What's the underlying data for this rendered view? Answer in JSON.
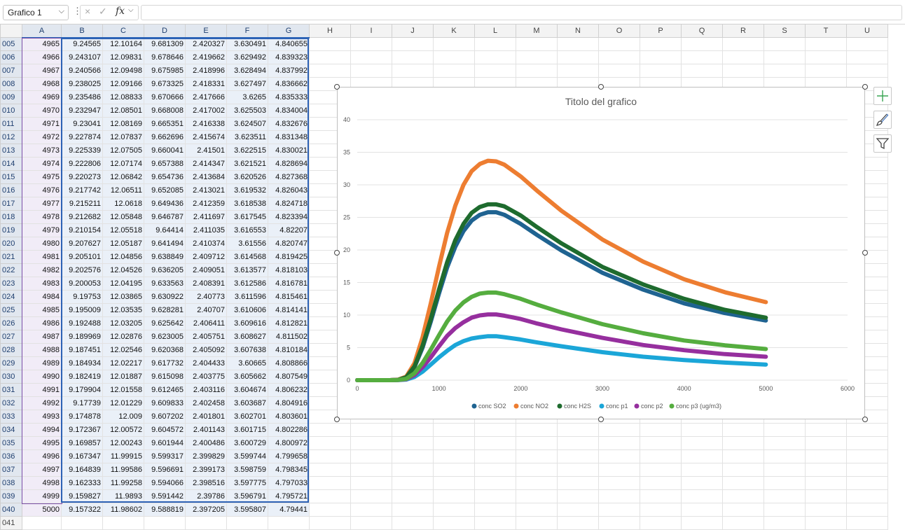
{
  "formula_bar": {
    "name_box": "Grafico 1",
    "cancel_icon": "×",
    "enter_icon": "✓",
    "fx_label": "fx",
    "formula": ""
  },
  "columns": [
    "A",
    "B",
    "C",
    "D",
    "E",
    "F",
    "G",
    "H",
    "I",
    "J",
    "K",
    "L",
    "M",
    "N",
    "O",
    "P",
    "Q",
    "R",
    "S",
    "T",
    "U"
  ],
  "rows": [
    {
      "n": "005",
      "v": [
        "4965",
        "9.24565",
        "12.10164",
        "9.681309",
        "2.420327",
        "3.630491",
        "4.840655"
      ]
    },
    {
      "n": "006",
      "v": [
        "4966",
        "9.243107",
        "12.09831",
        "9.678646",
        "2.419662",
        "3.629492",
        "4.839323"
      ]
    },
    {
      "n": "007",
      "v": [
        "4967",
        "9.240566",
        "12.09498",
        "9.675985",
        "2.418996",
        "3.628494",
        "4.837992"
      ]
    },
    {
      "n": "008",
      "v": [
        "4968",
        "9.238025",
        "12.09166",
        "9.673325",
        "2.418331",
        "3.627497",
        "4.836662"
      ]
    },
    {
      "n": "009",
      "v": [
        "4969",
        "9.235486",
        "12.08833",
        "9.670666",
        "2.417666",
        "3.6265",
        "4.835333"
      ]
    },
    {
      "n": "010",
      "v": [
        "4970",
        "9.232947",
        "12.08501",
        "9.668008",
        "2.417002",
        "3.625503",
        "4.834004"
      ]
    },
    {
      "n": "011",
      "v": [
        "4971",
        "9.23041",
        "12.08169",
        "9.665351",
        "2.416338",
        "3.624507",
        "4.832676"
      ]
    },
    {
      "n": "012",
      "v": [
        "4972",
        "9.227874",
        "12.07837",
        "9.662696",
        "2.415674",
        "3.623511",
        "4.831348"
      ]
    },
    {
      "n": "013",
      "v": [
        "4973",
        "9.225339",
        "12.07505",
        "9.660041",
        "2.41501",
        "3.622515",
        "4.830021"
      ]
    },
    {
      "n": "014",
      "v": [
        "4974",
        "9.222806",
        "12.07174",
        "9.657388",
        "2.414347",
        "3.621521",
        "4.828694"
      ]
    },
    {
      "n": "015",
      "v": [
        "4975",
        "9.220273",
        "12.06842",
        "9.654736",
        "2.413684",
        "3.620526",
        "4.827368"
      ]
    },
    {
      "n": "016",
      "v": [
        "4976",
        "9.217742",
        "12.06511",
        "9.652085",
        "2.413021",
        "3.619532",
        "4.826043"
      ]
    },
    {
      "n": "017",
      "v": [
        "4977",
        "9.215211",
        "12.0618",
        "9.649436",
        "2.412359",
        "3.618538",
        "4.824718"
      ]
    },
    {
      "n": "018",
      "v": [
        "4978",
        "9.212682",
        "12.05848",
        "9.646787",
        "2.411697",
        "3.617545",
        "4.823394"
      ]
    },
    {
      "n": "019",
      "v": [
        "4979",
        "9.210154",
        "12.05518",
        "9.64414",
        "2.411035",
        "3.616553",
        "4.82207"
      ]
    },
    {
      "n": "020",
      "v": [
        "4980",
        "9.207627",
        "12.05187",
        "9.641494",
        "2.410374",
        "3.61556",
        "4.820747"
      ]
    },
    {
      "n": "021",
      "v": [
        "4981",
        "9.205101",
        "12.04856",
        "9.638849",
        "2.409712",
        "3.614568",
        "4.819425"
      ]
    },
    {
      "n": "022",
      "v": [
        "4982",
        "9.202576",
        "12.04526",
        "9.636205",
        "2.409051",
        "3.613577",
        "4.818103"
      ]
    },
    {
      "n": "023",
      "v": [
        "4983",
        "9.200053",
        "12.04195",
        "9.633563",
        "2.408391",
        "3.612586",
        "4.816781"
      ]
    },
    {
      "n": "024",
      "v": [
        "4984",
        "9.19753",
        "12.03865",
        "9.630922",
        "2.40773",
        "3.611596",
        "4.815461"
      ]
    },
    {
      "n": "025",
      "v": [
        "4985",
        "9.195009",
        "12.03535",
        "9.628281",
        "2.40707",
        "3.610606",
        "4.814141"
      ]
    },
    {
      "n": "026",
      "v": [
        "4986",
        "9.192488",
        "12.03205",
        "9.625642",
        "2.406411",
        "3.609616",
        "4.812821"
      ]
    },
    {
      "n": "027",
      "v": [
        "4987",
        "9.189969",
        "12.02876",
        "9.623005",
        "2.405751",
        "3.608627",
        "4.811502"
      ]
    },
    {
      "n": "028",
      "v": [
        "4988",
        "9.187451",
        "12.02546",
        "9.620368",
        "2.405092",
        "3.607638",
        "4.810184"
      ]
    },
    {
      "n": "029",
      "v": [
        "4989",
        "9.184934",
        "12.02217",
        "9.617732",
        "2.404433",
        "3.60665",
        "4.808866"
      ]
    },
    {
      "n": "030",
      "v": [
        "4990",
        "9.182419",
        "12.01887",
        "9.615098",
        "2.403775",
        "3.605662",
        "4.807549"
      ]
    },
    {
      "n": "031",
      "v": [
        "4991",
        "9.179904",
        "12.01558",
        "9.612465",
        "2.403116",
        "3.604674",
        "4.806232"
      ]
    },
    {
      "n": "032",
      "v": [
        "4992",
        "9.17739",
        "12.01229",
        "9.609833",
        "2.402458",
        "3.603687",
        "4.804916"
      ]
    },
    {
      "n": "033",
      "v": [
        "4993",
        "9.174878",
        "12.009",
        "9.607202",
        "2.401801",
        "3.602701",
        "4.803601"
      ]
    },
    {
      "n": "034",
      "v": [
        "4994",
        "9.172367",
        "12.00572",
        "9.604572",
        "2.401143",
        "3.601715",
        "4.802286"
      ]
    },
    {
      "n": "035",
      "v": [
        "4995",
        "9.169857",
        "12.00243",
        "9.601944",
        "2.400486",
        "3.600729",
        "4.800972"
      ]
    },
    {
      "n": "036",
      "v": [
        "4996",
        "9.167347",
        "11.99915",
        "9.599317",
        "2.399829",
        "3.599744",
        "4.799658"
      ]
    },
    {
      "n": "037",
      "v": [
        "4997",
        "9.164839",
        "11.99586",
        "9.596691",
        "2.399173",
        "3.598759",
        "4.798345"
      ]
    },
    {
      "n": "038",
      "v": [
        "4998",
        "9.162333",
        "11.99258",
        "9.594066",
        "2.398516",
        "3.597775",
        "4.797033"
      ]
    },
    {
      "n": "039",
      "v": [
        "4999",
        "9.159827",
        "11.9893",
        "9.591442",
        "2.39786",
        "3.596791",
        "4.795721"
      ]
    },
    {
      "n": "040",
      "v": [
        "5000",
        "9.157322",
        "11.98602",
        "9.588819",
        "2.397205",
        "3.595807",
        "4.79441"
      ]
    },
    {
      "n": "041",
      "v": [
        "",
        "",
        "",
        "",
        "",
        "",
        ""
      ]
    }
  ],
  "chart_data": {
    "type": "scatter",
    "title": "Titolo del grafico",
    "xlim": [
      0,
      6000
    ],
    "ylim": [
      0,
      40
    ],
    "x_ticks": [
      0,
      1000,
      2000,
      3000,
      4000,
      5000,
      6000
    ],
    "y_ticks": [
      0,
      5,
      10,
      15,
      20,
      25,
      30,
      35,
      40
    ],
    "grid": "horizontal",
    "legend_position": "bottom",
    "x": [
      0,
      400,
      500,
      600,
      700,
      800,
      900,
      1000,
      1100,
      1200,
      1300,
      1400,
      1500,
      1600,
      1700,
      1800,
      2000,
      2200,
      2500,
      3000,
      3500,
      4000,
      4500,
      5000
    ],
    "series": [
      {
        "name": "conc SO2",
        "color": "#1f6391",
        "values": [
          0,
          0,
          0.05,
          0.4,
          2.0,
          5.0,
          9.0,
          13.3,
          17.3,
          20.5,
          22.9,
          24.5,
          25.4,
          25.8,
          25.8,
          25.4,
          24.0,
          22.3,
          19.9,
          16.5,
          13.9,
          11.8,
          10.3,
          9.16
        ]
      },
      {
        "name": "conc NO2",
        "color": "#ed7d31",
        "values": [
          0,
          0,
          0.07,
          0.55,
          2.6,
          6.6,
          11.8,
          17.4,
          22.6,
          26.8,
          30.0,
          32.1,
          33.2,
          33.7,
          33.6,
          33.1,
          31.3,
          29.1,
          26.0,
          21.6,
          18.2,
          15.5,
          13.5,
          11.99
        ]
      },
      {
        "name": "conc H2S",
        "color": "#1e6b2e",
        "values": [
          0,
          0,
          0.05,
          0.45,
          2.1,
          5.3,
          9.4,
          13.9,
          18.1,
          21.5,
          24.0,
          25.7,
          26.6,
          27.0,
          27.0,
          26.7,
          25.3,
          23.5,
          21.0,
          17.4,
          14.7,
          12.5,
          10.8,
          9.59
        ]
      },
      {
        "name": "conc p1",
        "color": "#1ba6d8",
        "values": [
          0,
          0,
          0.01,
          0.1,
          0.5,
          1.3,
          2.4,
          3.5,
          4.5,
          5.4,
          6.0,
          6.4,
          6.6,
          6.75,
          6.75,
          6.6,
          6.25,
          5.8,
          5.2,
          4.3,
          3.6,
          3.1,
          2.7,
          2.4
        ]
      },
      {
        "name": "conc p2",
        "color": "#962f9e",
        "values": [
          0,
          0,
          0.02,
          0.15,
          0.8,
          2.0,
          3.5,
          5.2,
          6.8,
          8.0,
          8.9,
          9.6,
          9.95,
          10.1,
          10.1,
          9.9,
          9.4,
          8.7,
          7.8,
          6.5,
          5.4,
          4.6,
          4.0,
          3.6
        ]
      },
      {
        "name": "conc p3 (ug/m3)",
        "color": "#55ad3f",
        "values": [
          0,
          0,
          0.03,
          0.2,
          1.05,
          2.65,
          4.7,
          6.9,
          9.0,
          10.7,
          11.95,
          12.8,
          13.3,
          13.45,
          13.45,
          13.2,
          12.5,
          11.6,
          10.4,
          8.6,
          7.2,
          6.1,
          5.35,
          4.79
        ]
      }
    ]
  },
  "chart_side_buttons": [
    "plus-icon",
    "brush-icon",
    "filter-icon"
  ]
}
